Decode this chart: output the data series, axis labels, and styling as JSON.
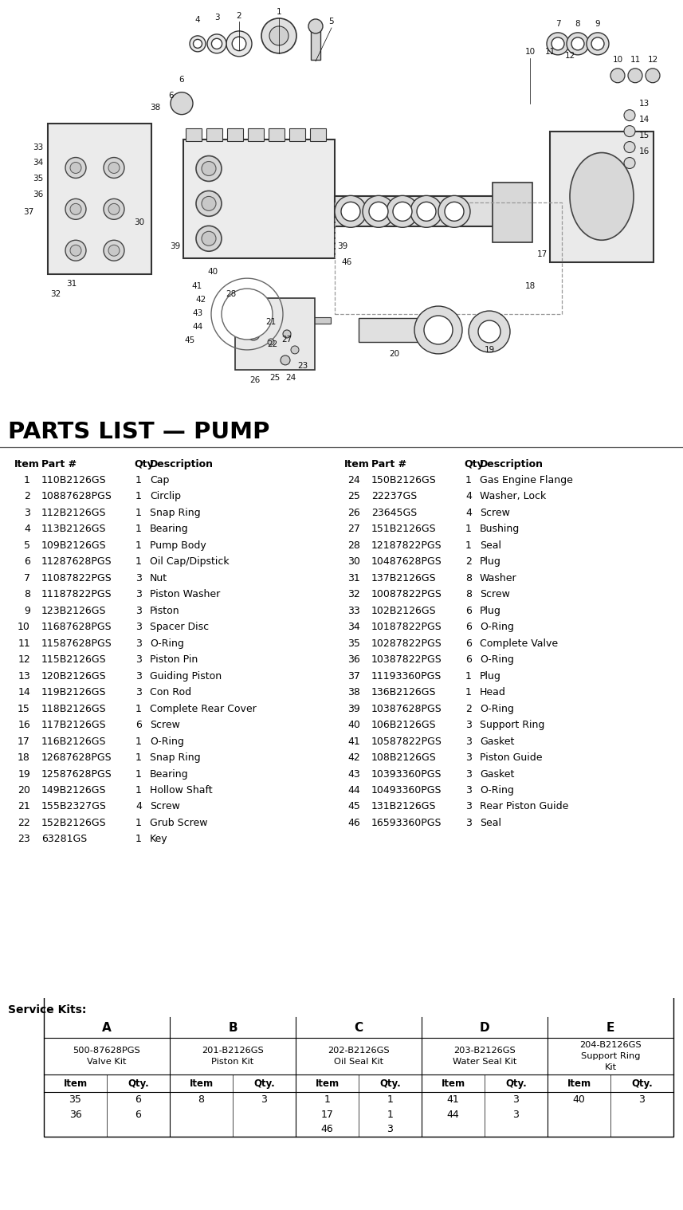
{
  "title": "PARTS LIST — PUMP",
  "bg_color": "#ffffff",
  "parts_left": [
    {
      "item": "1",
      "part": "110B2126GS",
      "qty": "1",
      "desc": "Cap"
    },
    {
      "item": "2",
      "part": "10887628PGS",
      "qty": "1",
      "desc": "Circlip"
    },
    {
      "item": "3",
      "part": "112B2126GS",
      "qty": "1",
      "desc": "Snap Ring"
    },
    {
      "item": "4",
      "part": "113B2126GS",
      "qty": "1",
      "desc": "Bearing"
    },
    {
      "item": "5",
      "part": "109B2126GS",
      "qty": "1",
      "desc": "Pump Body"
    },
    {
      "item": "6",
      "part": "11287628PGS",
      "qty": "1",
      "desc": "Oil Cap/Dipstick"
    },
    {
      "item": "7",
      "part": "11087822PGS",
      "qty": "3",
      "desc": "Nut"
    },
    {
      "item": "8",
      "part": "11187822PGS",
      "qty": "3",
      "desc": "Piston Washer"
    },
    {
      "item": "9",
      "part": "123B2126GS",
      "qty": "3",
      "desc": "Piston"
    },
    {
      "item": "10",
      "part": "11687628PGS",
      "qty": "3",
      "desc": "Spacer Disc"
    },
    {
      "item": "11",
      "part": "11587628PGS",
      "qty": "3",
      "desc": "O-Ring"
    },
    {
      "item": "12",
      "part": "115B2126GS",
      "qty": "3",
      "desc": "Piston Pin"
    },
    {
      "item": "13",
      "part": "120B2126GS",
      "qty": "3",
      "desc": "Guiding Piston"
    },
    {
      "item": "14",
      "part": "119B2126GS",
      "qty": "3",
      "desc": "Con Rod"
    },
    {
      "item": "15",
      "part": "118B2126GS",
      "qty": "1",
      "desc": "Complete Rear Cover"
    },
    {
      "item": "16",
      "part": "117B2126GS",
      "qty": "6",
      "desc": "Screw"
    },
    {
      "item": "17",
      "part": "116B2126GS",
      "qty": "1",
      "desc": "O-Ring"
    },
    {
      "item": "18",
      "part": "12687628PGS",
      "qty": "1",
      "desc": "Snap Ring"
    },
    {
      "item": "19",
      "part": "12587628PGS",
      "qty": "1",
      "desc": "Bearing"
    },
    {
      "item": "20",
      "part": "149B2126GS",
      "qty": "1",
      "desc": "Hollow Shaft"
    },
    {
      "item": "21",
      "part": "155B2327GS",
      "qty": "4",
      "desc": "Screw"
    },
    {
      "item": "22",
      "part": "152B2126GS",
      "qty": "1",
      "desc": "Grub Screw"
    },
    {
      "item": "23",
      "part": "63281GS",
      "qty": "1",
      "desc": "Key"
    }
  ],
  "parts_right": [
    {
      "item": "24",
      "part": "150B2126GS",
      "qty": "1",
      "desc": "Gas Engine Flange"
    },
    {
      "item": "25",
      "part": "22237GS",
      "qty": "4",
      "desc": "Washer, Lock"
    },
    {
      "item": "26",
      "part": "23645GS",
      "qty": "4",
      "desc": "Screw"
    },
    {
      "item": "27",
      "part": "151B2126GS",
      "qty": "1",
      "desc": "Bushing"
    },
    {
      "item": "28",
      "part": "12187822PGS",
      "qty": "1",
      "desc": "Seal"
    },
    {
      "item": "30",
      "part": "10487628PGS",
      "qty": "2",
      "desc": "Plug"
    },
    {
      "item": "31",
      "part": "137B2126GS",
      "qty": "8",
      "desc": "Washer"
    },
    {
      "item": "32",
      "part": "10087822PGS",
      "qty": "8",
      "desc": "Screw"
    },
    {
      "item": "33",
      "part": "102B2126GS",
      "qty": "6",
      "desc": "Plug"
    },
    {
      "item": "34",
      "part": "10187822PGS",
      "qty": "6",
      "desc": "O-Ring"
    },
    {
      "item": "35",
      "part": "10287822PGS",
      "qty": "6",
      "desc": "Complete Valve"
    },
    {
      "item": "36",
      "part": "10387822PGS",
      "qty": "6",
      "desc": "O-Ring"
    },
    {
      "item": "37",
      "part": "11193360PGS",
      "qty": "1",
      "desc": "Plug"
    },
    {
      "item": "38",
      "part": "136B2126GS",
      "qty": "1",
      "desc": "Head"
    },
    {
      "item": "39",
      "part": "10387628PGS",
      "qty": "2",
      "desc": "O-Ring"
    },
    {
      "item": "40",
      "part": "106B2126GS",
      "qty": "3",
      "desc": "Support Ring"
    },
    {
      "item": "41",
      "part": "10587822PGS",
      "qty": "3",
      "desc": "Gasket"
    },
    {
      "item": "42",
      "part": "108B2126GS",
      "qty": "3",
      "desc": "Piston Guide"
    },
    {
      "item": "43",
      "part": "10393360PGS",
      "qty": "3",
      "desc": "Gasket"
    },
    {
      "item": "44",
      "part": "10493360PGS",
      "qty": "3",
      "desc": "O-Ring"
    },
    {
      "item": "45",
      "part": "131B2126GS",
      "qty": "3",
      "desc": "Rear Piston Guide"
    },
    {
      "item": "46",
      "part": "16593360PGS",
      "qty": "3",
      "desc": "Seal"
    }
  ],
  "service_kits": {
    "headers": [
      "A",
      "B",
      "C",
      "D",
      "E"
    ],
    "kit_names": [
      "500-87628PGS\nValve Kit",
      "201-B2126GS\nPiston Kit",
      "202-B2126GS\nOil Seal Kit",
      "203-B2126GS\nWater Seal Kit",
      "204-B2126GS\nSupport Ring\nKit"
    ],
    "data_rows": [
      [
        "35",
        "6",
        "8",
        "3",
        "1",
        "1",
        "41",
        "3",
        "40",
        "3"
      ],
      [
        "36",
        "6",
        "",
        "",
        "17",
        "1",
        "44",
        "3",
        "",
        ""
      ],
      [
        "",
        "",
        "",
        "",
        "46",
        "3",
        "",
        "",
        "",
        ""
      ]
    ]
  },
  "fig_width": 8.57,
  "fig_height": 15.18,
  "dpi": 100
}
